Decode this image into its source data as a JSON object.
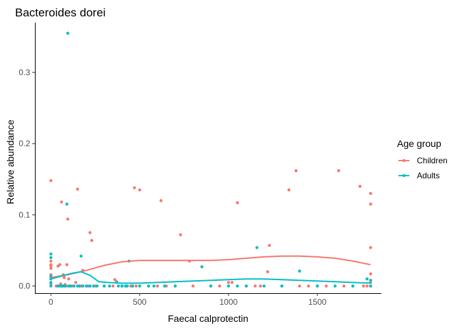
{
  "chart_data": {
    "type": "scatter",
    "title": "Bacteroides dorei",
    "xlabel": "Faecal calprotectin",
    "ylabel": "Relative abundance",
    "xlim": [
      -90,
      1860
    ],
    "ylim": [
      -0.01,
      0.37
    ],
    "x_ticks": [
      0,
      500,
      1000,
      1500
    ],
    "x_tick_labels": [
      "0",
      "500",
      "1000",
      "1500"
    ],
    "y_ticks": [
      0.0,
      0.1,
      0.2,
      0.3
    ],
    "y_tick_labels": [
      "0.0",
      "0.1",
      "0.2",
      "0.3"
    ],
    "grid": false,
    "legend_title": "Age group",
    "legend_position": "right",
    "series": [
      {
        "name": "Children",
        "color": "#F8766D",
        "points": [
          [
            0,
            0.148
          ],
          [
            0,
            0.035
          ],
          [
            0,
            0.03
          ],
          [
            0,
            0.028
          ],
          [
            0,
            0.025
          ],
          [
            0,
            0.016
          ],
          [
            0,
            0.012
          ],
          [
            0,
            0.003
          ],
          [
            30,
            0.0
          ],
          [
            40,
            0.028
          ],
          [
            50,
            0.03
          ],
          [
            55,
            0.003
          ],
          [
            60,
            0.118
          ],
          [
            65,
            0.0
          ],
          [
            70,
            0.016
          ],
          [
            75,
            0.012
          ],
          [
            80,
            0.002
          ],
          [
            85,
            0.0
          ],
          [
            90,
            0.03
          ],
          [
            95,
            0.094
          ],
          [
            100,
            0.01
          ],
          [
            110,
            0.0
          ],
          [
            120,
            0.0
          ],
          [
            140,
            0.005
          ],
          [
            150,
            0.136
          ],
          [
            160,
            0.0
          ],
          [
            170,
            0.0
          ],
          [
            180,
            0.022
          ],
          [
            200,
            0.0
          ],
          [
            210,
            0.0
          ],
          [
            220,
            0.075
          ],
          [
            230,
            0.064
          ],
          [
            250,
            0.0
          ],
          [
            300,
            0.0
          ],
          [
            350,
            0.0
          ],
          [
            360,
            0.009
          ],
          [
            370,
            0.006
          ],
          [
            400,
            0.0
          ],
          [
            420,
            0.0
          ],
          [
            450,
            0.0
          ],
          [
            460,
            0.0
          ],
          [
            470,
            0.138
          ],
          [
            480,
            0.0
          ],
          [
            500,
            0.135
          ],
          [
            550,
            0.0
          ],
          [
            600,
            0.0
          ],
          [
            620,
            0.12
          ],
          [
            650,
            0.0
          ],
          [
            700,
            0.0
          ],
          [
            730,
            0.072
          ],
          [
            780,
            0.035
          ],
          [
            800,
            0.0
          ],
          [
            900,
            0.0
          ],
          [
            950,
            0.0
          ],
          [
            1000,
            0.005
          ],
          [
            1020,
            0.005
          ],
          [
            1050,
            0.117
          ],
          [
            1100,
            0.0
          ],
          [
            1150,
            0.0
          ],
          [
            1180,
            0.0
          ],
          [
            1220,
            0.02
          ],
          [
            1230,
            0.057
          ],
          [
            1300,
            0.0
          ],
          [
            1340,
            0.135
          ],
          [
            1380,
            0.162
          ],
          [
            1400,
            0.0
          ],
          [
            1450,
            0.0
          ],
          [
            1500,
            0.0
          ],
          [
            1550,
            0.0
          ],
          [
            1620,
            0.162
          ],
          [
            1650,
            0.0
          ],
          [
            1700,
            0.0
          ],
          [
            1740,
            0.14
          ],
          [
            1760,
            0.0
          ],
          [
            1780,
            0.0
          ],
          [
            1800,
            0.13
          ],
          [
            1800,
            0.115
          ],
          [
            1800,
            0.054
          ],
          [
            1800,
            0.017
          ],
          [
            1800,
            0.005
          ],
          [
            1800,
            0.0
          ]
        ],
        "trend": [
          [
            0,
            0.012
          ],
          [
            100,
            0.016
          ],
          [
            200,
            0.022
          ],
          [
            300,
            0.029
          ],
          [
            400,
            0.034
          ],
          [
            500,
            0.036
          ],
          [
            600,
            0.036
          ],
          [
            700,
            0.036
          ],
          [
            800,
            0.036
          ],
          [
            900,
            0.036
          ],
          [
            1000,
            0.037
          ],
          [
            1100,
            0.039
          ],
          [
            1200,
            0.041
          ],
          [
            1300,
            0.042
          ],
          [
            1400,
            0.042
          ],
          [
            1500,
            0.041
          ],
          [
            1600,
            0.039
          ],
          [
            1700,
            0.035
          ],
          [
            1800,
            0.03
          ]
        ]
      },
      {
        "name": "Adults",
        "color": "#00BFC4",
        "points": [
          [
            0,
            0.045
          ],
          [
            0,
            0.04
          ],
          [
            0,
            0.014
          ],
          [
            0,
            0.01
          ],
          [
            0,
            0.005
          ],
          [
            0,
            0.0
          ],
          [
            40,
            0.0
          ],
          [
            50,
            0.0
          ],
          [
            60,
            0.0
          ],
          [
            70,
            0.0
          ],
          [
            80,
            0.0
          ],
          [
            90,
            0.115
          ],
          [
            95,
            0.355
          ],
          [
            100,
            0.0
          ],
          [
            110,
            0.0
          ],
          [
            130,
            0.0
          ],
          [
            150,
            0.0
          ],
          [
            160,
            0.0
          ],
          [
            170,
            0.042
          ],
          [
            180,
            0.0
          ],
          [
            200,
            0.0
          ],
          [
            220,
            0.0
          ],
          [
            240,
            0.0
          ],
          [
            260,
            0.0
          ],
          [
            300,
            0.0
          ],
          [
            330,
            0.0
          ],
          [
            370,
            0.005
          ],
          [
            380,
            0.0
          ],
          [
            400,
            0.0
          ],
          [
            420,
            0.0
          ],
          [
            430,
            0.0
          ],
          [
            440,
            0.035
          ],
          [
            460,
            0.0
          ],
          [
            500,
            0.0
          ],
          [
            550,
            0.0
          ],
          [
            580,
            0.0
          ],
          [
            640,
            0.0
          ],
          [
            700,
            0.0
          ],
          [
            850,
            0.027
          ],
          [
            900,
            0.0
          ],
          [
            1000,
            0.0
          ],
          [
            1050,
            0.0
          ],
          [
            1100,
            0.0
          ],
          [
            1160,
            0.054
          ],
          [
            1200,
            0.0
          ],
          [
            1300,
            0.0
          ],
          [
            1400,
            0.021
          ],
          [
            1500,
            0.0
          ],
          [
            1600,
            0.0
          ],
          [
            1700,
            0.0
          ],
          [
            1780,
            0.01
          ],
          [
            1800,
            0.008
          ],
          [
            1800,
            0.0
          ]
        ],
        "trend": [
          [
            0,
            0.01
          ],
          [
            60,
            0.014
          ],
          [
            120,
            0.018
          ],
          [
            170,
            0.02
          ],
          [
            220,
            0.015
          ],
          [
            270,
            0.006
          ],
          [
            320,
            0.005
          ],
          [
            400,
            0.004
          ],
          [
            500,
            0.004
          ],
          [
            600,
            0.005
          ],
          [
            700,
            0.006
          ],
          [
            800,
            0.007
          ],
          [
            900,
            0.008
          ],
          [
            1000,
            0.009
          ],
          [
            1100,
            0.01
          ],
          [
            1200,
            0.01
          ],
          [
            1300,
            0.009
          ],
          [
            1400,
            0.008
          ],
          [
            1500,
            0.007
          ],
          [
            1600,
            0.006
          ],
          [
            1700,
            0.005
          ],
          [
            1800,
            0.004
          ]
        ]
      }
    ]
  }
}
